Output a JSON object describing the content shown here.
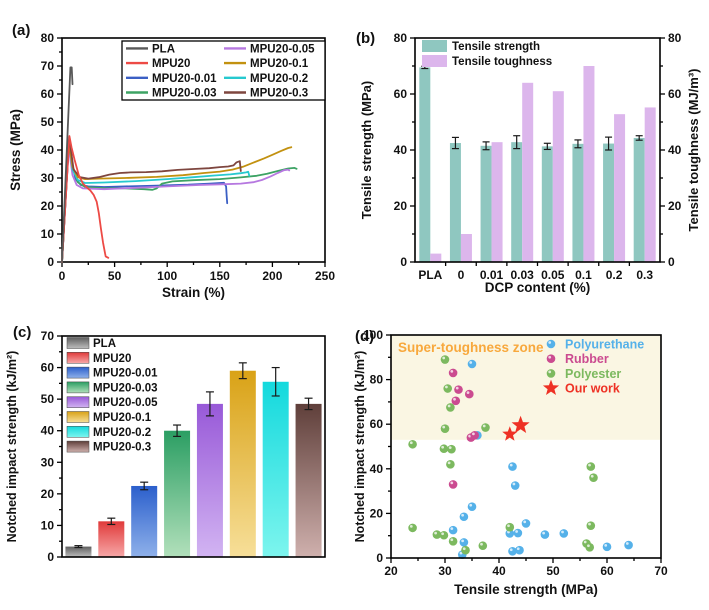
{
  "chart_data": [
    {
      "id": "a",
      "type": "line",
      "panel_label": "(a)",
      "xlabel": "Strain (%)",
      "ylabel": "Stress (MPa)",
      "xlim": [
        0,
        250
      ],
      "ylim": [
        0,
        80
      ],
      "xticks": [
        0,
        50,
        100,
        150,
        200,
        250
      ],
      "yticks": [
        0,
        10,
        20,
        30,
        40,
        50,
        60,
        70,
        80
      ],
      "x_minor": 25,
      "y_minor": 5,
      "legend_columns": [
        [
          "PLA",
          "MPU20",
          "MPU20-0.01",
          "MPU20-0.03"
        ],
        [
          "MPU20-0.05",
          "MPU20-0.1",
          "MPU20-0.2",
          "MPU20-0.3"
        ]
      ],
      "series": [
        {
          "name": "PLA",
          "color": "#595959",
          "points": [
            [
              0,
              0
            ],
            [
              8,
              69.5
            ],
            [
              9.2,
              69.5
            ],
            [
              10,
              63.5
            ]
          ]
        },
        {
          "name": "MPU20",
          "color": "#ed4a45",
          "points": [
            [
              0,
              0
            ],
            [
              7,
              45
            ],
            [
              9,
              41
            ],
            [
              12,
              36.5
            ],
            [
              16,
              31
            ],
            [
              20,
              28
            ],
            [
              24,
              26.5
            ],
            [
              27,
              25.5
            ],
            [
              30,
              24
            ],
            [
              33,
              21.5
            ],
            [
              35,
              17.5
            ],
            [
              37,
              12
            ],
            [
              39,
              7
            ],
            [
              41,
              3
            ],
            [
              41.5,
              2
            ],
            [
              44,
              1.5
            ]
          ]
        },
        {
          "name": "MPU20-0.01",
          "color": "#3b5fc4",
          "points": [
            [
              0,
              0
            ],
            [
              6.5,
              42
            ],
            [
              9,
              36
            ],
            [
              13,
              29.5
            ],
            [
              18,
              27.5
            ],
            [
              25,
              27
            ],
            [
              40,
              26.8
            ],
            [
              60,
              27
            ],
            [
              90,
              27.3
            ],
            [
              120,
              27.6
            ],
            [
              140,
              28
            ],
            [
              150,
              28.2
            ],
            [
              154,
              28.3
            ],
            [
              156,
              27
            ],
            [
              156.5,
              24
            ],
            [
              157,
              21
            ]
          ]
        },
        {
          "name": "MPU20-0.03",
          "color": "#3da364",
          "points": [
            [
              0,
              0
            ],
            [
              6.5,
              42.5
            ],
            [
              10,
              34
            ],
            [
              15,
              28.5
            ],
            [
              22,
              26.8
            ],
            [
              40,
              26.4
            ],
            [
              60,
              26.3
            ],
            [
              78,
              26
            ],
            [
              86,
              25.8
            ],
            [
              90,
              26.3
            ],
            [
              95,
              28
            ],
            [
              105,
              28.8
            ],
            [
              125,
              29.2
            ],
            [
              150,
              29.6
            ],
            [
              170,
              30.2
            ],
            [
              185,
              30.8
            ],
            [
              195,
              31.5
            ],
            [
              205,
              32.5
            ],
            [
              215,
              33.4
            ],
            [
              221,
              33.6
            ],
            [
              223,
              33.3
            ]
          ]
        },
        {
          "name": "MPU20-0.05",
          "color": "#b678e0",
          "points": [
            [
              0,
              0
            ],
            [
              6.5,
              41
            ],
            [
              10,
              31
            ],
            [
              14,
              27.5
            ],
            [
              20,
              26.3
            ],
            [
              40,
              26
            ],
            [
              70,
              26.5
            ],
            [
              100,
              27
            ],
            [
              130,
              27.5
            ],
            [
              155,
              27.8
            ],
            [
              170,
              28
            ],
            [
              182,
              28.5
            ],
            [
              190,
              29.3
            ],
            [
              198,
              30.5
            ],
            [
              205,
              31.8
            ],
            [
              211,
              32.8
            ],
            [
              215,
              33
            ],
            [
              216,
              32.7
            ]
          ]
        },
        {
          "name": "MPU20-0.1",
          "color": "#c29110",
          "points": [
            [
              0,
              0
            ],
            [
              6.5,
              43
            ],
            [
              10,
              34
            ],
            [
              15,
              30.3
            ],
            [
              22,
              29.6
            ],
            [
              35,
              29.8
            ],
            [
              60,
              30
            ],
            [
              90,
              30.4
            ],
            [
              115,
              31
            ],
            [
              135,
              31.8
            ],
            [
              150,
              32.3
            ],
            [
              162,
              33
            ],
            [
              172,
              34
            ],
            [
              182,
              35.5
            ],
            [
              192,
              37
            ],
            [
              200,
              38.3
            ],
            [
              208,
              39.6
            ],
            [
              215,
              40.7
            ],
            [
              218,
              41
            ]
          ]
        },
        {
          "name": "MPU20-0.2",
          "color": "#26c9cf",
          "points": [
            [
              0,
              0
            ],
            [
              6.5,
              43.5
            ],
            [
              10,
              33
            ],
            [
              15,
              29.3
            ],
            [
              22,
              28.2
            ],
            [
              40,
              28.4
            ],
            [
              70,
              28.9
            ],
            [
              100,
              29.6
            ],
            [
              125,
              30.3
            ],
            [
              145,
              30.9
            ],
            [
              160,
              31.3
            ],
            [
              170,
              31.7
            ],
            [
              175,
              32
            ],
            [
              177,
              32.2
            ],
            [
              178,
              30.8
            ]
          ]
        },
        {
          "name": "MPU20-0.3",
          "color": "#7e463f",
          "points": [
            [
              0,
              0
            ],
            [
              6.8,
              44.5
            ],
            [
              11,
              33
            ],
            [
              17,
              30.3
            ],
            [
              25,
              29.8
            ],
            [
              35,
              30.3
            ],
            [
              45,
              31.2
            ],
            [
              55,
              31.8
            ],
            [
              65,
              32
            ],
            [
              80,
              32.1
            ],
            [
              95,
              32.4
            ],
            [
              110,
              32.9
            ],
            [
              125,
              33.2
            ],
            [
              140,
              33.5
            ],
            [
              150,
              33.9
            ],
            [
              158,
              34.1
            ],
            [
              163,
              34.5
            ],
            [
              166,
              35.6
            ],
            [
              169,
              36
            ],
            [
              170,
              32.5
            ]
          ]
        }
      ]
    },
    {
      "id": "b",
      "type": "bar-dual",
      "panel_label": "(b)",
      "xlabel": "DCP content (%)",
      "ylabel_left": "Tensile strength (MPa)",
      "ylabel_right": "Tensile toughness (MJ/m³)",
      "ylim": [
        0,
        80
      ],
      "yticks": [
        0,
        20,
        40,
        60,
        80
      ],
      "y_minor": 10,
      "categories": [
        "PLA",
        "0",
        "0.01",
        "0.03",
        "0.05",
        "0.1",
        "0.2",
        "0.3"
      ],
      "series": [
        {
          "name": "Tensile strength",
          "color": "#8fc7c0",
          "values": [
            69.5,
            42.5,
            41.5,
            42.8,
            41.3,
            42.2,
            42.3,
            44.3
          ],
          "errors": [
            0.4,
            2.0,
            1.4,
            2.3,
            1.1,
            1.4,
            2.3,
            0.8
          ]
        },
        {
          "name": "Tensile toughness",
          "color": "#dcb6ec",
          "values": [
            3,
            10,
            42.8,
            64,
            61,
            70,
            52.8,
            55.2
          ],
          "errors": [
            0,
            0,
            0,
            0,
            0,
            0,
            0,
            0
          ]
        }
      ]
    },
    {
      "id": "c",
      "type": "bar",
      "panel_label": "(c)",
      "ylabel": "Notched impact strength (kJ/m²)",
      "ylim": [
        0,
        70
      ],
      "yticks": [
        0,
        10,
        20,
        30,
        40,
        50,
        60,
        70
      ],
      "y_minor": 5,
      "categories": [
        "PLA",
        "MPU20",
        "MPU20-0.01",
        "MPU20-0.03",
        "MPU20-0.05",
        "MPU20-0.1",
        "MPU20-0.2",
        "MPU20-0.3"
      ],
      "values": [
        3.3,
        11.3,
        22.5,
        40,
        48.5,
        59,
        55.5,
        48.5
      ],
      "errors": [
        0.3,
        1.0,
        1.2,
        1.8,
        3.8,
        2.5,
        4.5,
        1.8
      ],
      "bar_gradients": [
        [
          "#5f5f5f",
          "#bdbdbd"
        ],
        [
          "#e03a3a",
          "#f7a8a8"
        ],
        [
          "#2b5fcc",
          "#8fb1ea"
        ],
        [
          "#2b9e63",
          "#b2e0bb"
        ],
        [
          "#9859d8",
          "#d2b4f2"
        ],
        [
          "#d9a216",
          "#f7df99"
        ],
        [
          "#14d9dd",
          "#7df5ee"
        ],
        [
          "#5f3f3a",
          "#cfb0ad"
        ]
      ]
    },
    {
      "id": "d",
      "type": "scatter",
      "panel_label": "(d)",
      "xlabel": "Tensile strength (MPa)",
      "ylabel": "Notched impact strength (kJ/m²)",
      "xlim": [
        20,
        70
      ],
      "ylim": [
        0,
        100
      ],
      "xticks": [
        20,
        30,
        40,
        50,
        60,
        70
      ],
      "yticks": [
        0,
        20,
        40,
        60,
        80,
        100
      ],
      "x_minor": 5,
      "y_minor": 10,
      "zone": {
        "label": "Super-toughness zone",
        "y_min": 53,
        "fill": "#faf6e3",
        "label_color": "#f8a83c"
      },
      "series": [
        {
          "name": "Polyurethane",
          "color": "#55b1e9",
          "marker": "circle",
          "points": [
            [
              35,
              87
            ],
            [
              36,
              55
            ],
            [
              42.5,
              41
            ],
            [
              43,
              32.5
            ],
            [
              35,
              23
            ],
            [
              33.5,
              18.5
            ],
            [
              31.5,
              12.5
            ],
            [
              33.5,
              7
            ],
            [
              33.2,
              1.5
            ],
            [
              42,
              11
            ],
            [
              43.5,
              11.2
            ],
            [
              45,
              15.5
            ],
            [
              42.5,
              3
            ],
            [
              43.8,
              3.5
            ],
            [
              48.5,
              10.5
            ],
            [
              52,
              11
            ],
            [
              60,
              5
            ],
            [
              64,
              5.8
            ]
          ]
        },
        {
          "name": "Rubber",
          "color": "#cb4b90",
          "marker": "circle",
          "points": [
            [
              31.5,
              83
            ],
            [
              32.5,
              75.5
            ],
            [
              34.5,
              73.5
            ],
            [
              32,
              70.5
            ],
            [
              34.8,
              54
            ],
            [
              35.5,
              55
            ],
            [
              31.5,
              33
            ]
          ]
        },
        {
          "name": "Polyester",
          "color": "#7cb95f",
          "marker": "circle",
          "points": [
            [
              30,
              89
            ],
            [
              30.5,
              76
            ],
            [
              31,
              67.5
            ],
            [
              30,
              58
            ],
            [
              37.5,
              58.5
            ],
            [
              24,
              51
            ],
            [
              29.8,
              49
            ],
            [
              31.2,
              48.8
            ],
            [
              31,
              42
            ],
            [
              57,
              41
            ],
            [
              57.5,
              36
            ],
            [
              24,
              13.5
            ],
            [
              28.5,
              10.5
            ],
            [
              29.8,
              10.2
            ],
            [
              31.5,
              7.5
            ],
            [
              33.8,
              3.5
            ],
            [
              37,
              5.5
            ],
            [
              42,
              13.8
            ],
            [
              57,
              14.5
            ],
            [
              56.2,
              6.5
            ],
            [
              56.8,
              4.8
            ]
          ]
        },
        {
          "name": "Our work",
          "color": "#ee3124",
          "marker": "star",
          "points": [
            [
              42,
              55.5
            ],
            [
              44,
              59.5
            ]
          ]
        }
      ]
    }
  ]
}
